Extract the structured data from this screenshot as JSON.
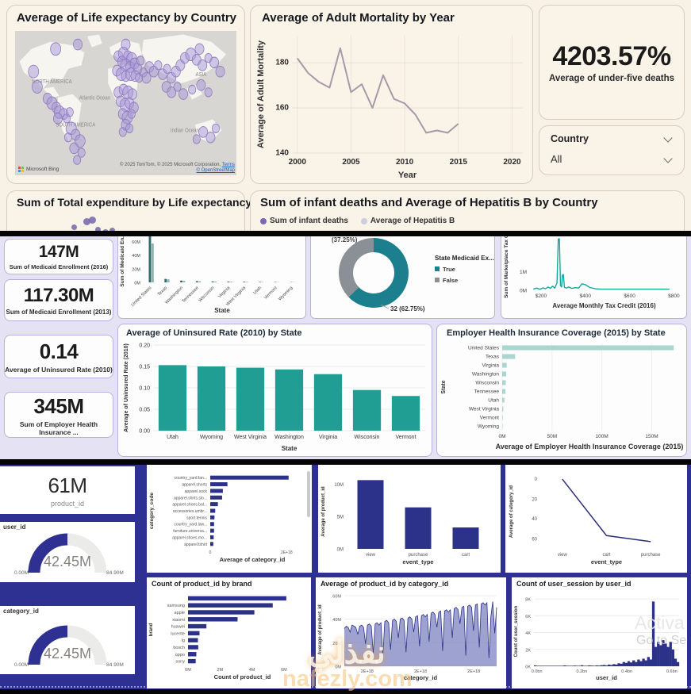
{
  "colors": {
    "cream": "#f8f1e5",
    "lavender": "#e4e2f3",
    "navy": "#2e3192",
    "teal": "#219e94",
    "teal_dark": "#2e6b66",
    "teal_mid": "#8fb3ae",
    "teal_light": "#abd6d0",
    "donut_teal": "#1c7f8e",
    "donut_gray": "#8b9096",
    "purple": "#7b68b5",
    "hep_gray": "#cfccdf",
    "mortality_line": "#a79aa8",
    "tax_line": "#18a79b",
    "bar_navy": "#2c3189",
    "line_navy": "#2a3078",
    "area_fill": "rgba(125,131,192,0.75)",
    "map_ocean": "#d7d6d2",
    "map_land": "#f7f5f0",
    "bubble_fill": "rgba(168,150,215,0.5)",
    "bubble_stroke": "#8d7bc0"
  },
  "top": {
    "map": {
      "bing": "Microsoft Bing",
      "attribution1": "© 2025 TomTom, © 2025 Microsoft Corporation,",
      "terms": "Terms",
      "attribution2": "© OpenStreetMap"
    },
    "kpi": {
      "value": "4203.57%",
      "label": "Average of under-five deaths"
    },
    "filter": {
      "label": "Country",
      "value": "All"
    },
    "infant": {
      "title": "Sum of infant deaths and Average of Hepatitis B by Country",
      "legend1": "Sum of infant deaths",
      "legend2": "Average of Hepatitis B"
    }
  },
  "middle": {
    "kpis": [
      {
        "value": "147M",
        "label": "Sum of Medicaid Enrollment (2016)"
      },
      {
        "value": "117.30M",
        "label": "Sum of Medicaid Enrollment (2013)"
      },
      {
        "value": "0.14",
        "label": "Average of Uninsured Rate (2010)"
      },
      {
        "value": "345M",
        "label": "Sum of Employer Health Insurance ..."
      }
    ]
  },
  "bottom": {
    "kpi": {
      "value": "61M",
      "label": "product_id"
    }
  },
  "watermark": {
    "arabic": "نفذلي",
    "site": "nafezly.com"
  },
  "activate": {
    "line1": "Activa",
    "line2": "Go to Se"
  },
  "chart_data": {
    "life_expectancy_map": {
      "type": "scatter",
      "title": "Average of Life expectancy by Country",
      "labels": [
        "NORTH AMERICA",
        "ASIA",
        "SOUTH AMERICA",
        "Atlantic Ocean",
        "Indian Ocean"
      ],
      "bubbles": [
        [
          55,
          20,
          7
        ],
        [
          25,
          45,
          7
        ],
        [
          30,
          62,
          7
        ],
        [
          85,
          15,
          6
        ],
        [
          150,
          15,
          6
        ],
        [
          250,
          20,
          6
        ],
        [
          44,
          75,
          6
        ],
        [
          50,
          80,
          7
        ],
        [
          56,
          85,
          6
        ],
        [
          60,
          90,
          7
        ],
        [
          66,
          92,
          6
        ],
        [
          58,
          97,
          6
        ],
        [
          70,
          97,
          5
        ],
        [
          74,
          90,
          5
        ],
        [
          76,
          108,
          7
        ],
        [
          82,
          115,
          6
        ],
        [
          88,
          122,
          7
        ],
        [
          80,
          130,
          6
        ],
        [
          90,
          135,
          5
        ],
        [
          72,
          118,
          5
        ],
        [
          84,
          143,
          5
        ],
        [
          140,
          28,
          6
        ],
        [
          147,
          25,
          7
        ],
        [
          153,
          28,
          6
        ],
        [
          158,
          31,
          7
        ],
        [
          145,
          34,
          6
        ],
        [
          150,
          38,
          7
        ],
        [
          156,
          40,
          6
        ],
        [
          162,
          36,
          6
        ],
        [
          166,
          42,
          6
        ],
        [
          170,
          33,
          5
        ],
        [
          138,
          44,
          6
        ],
        [
          144,
          48,
          7
        ],
        [
          150,
          50,
          6
        ],
        [
          157,
          48,
          7
        ],
        [
          163,
          50,
          6
        ],
        [
          168,
          52,
          5
        ],
        [
          174,
          46,
          5
        ],
        [
          178,
          52,
          6
        ],
        [
          140,
          68,
          6
        ],
        [
          147,
          65,
          6
        ],
        [
          153,
          68,
          7
        ],
        [
          159,
          70,
          6
        ],
        [
          143,
          78,
          6
        ],
        [
          149,
          82,
          7
        ],
        [
          155,
          80,
          6
        ],
        [
          161,
          85,
          6
        ],
        [
          146,
          92,
          6
        ],
        [
          152,
          96,
          7
        ],
        [
          158,
          92,
          5
        ],
        [
          150,
          104,
          6
        ],
        [
          155,
          108,
          5
        ],
        [
          146,
          112,
          5
        ],
        [
          182,
          40,
          6
        ],
        [
          188,
          45,
          6
        ],
        [
          194,
          38,
          5
        ],
        [
          200,
          48,
          6
        ],
        [
          206,
          42,
          5
        ],
        [
          212,
          52,
          6
        ],
        [
          218,
          45,
          6
        ],
        [
          224,
          38,
          6
        ],
        [
          230,
          30,
          6
        ],
        [
          238,
          26,
          7
        ],
        [
          246,
          32,
          6
        ],
        [
          254,
          38,
          6
        ],
        [
          262,
          30,
          5
        ],
        [
          270,
          35,
          6
        ],
        [
          278,
          45,
          6
        ],
        [
          205,
          62,
          6
        ],
        [
          212,
          68,
          6
        ],
        [
          220,
          62,
          5
        ],
        [
          228,
          70,
          6
        ],
        [
          240,
          65,
          5
        ],
        [
          252,
          60,
          6
        ],
        [
          262,
          68,
          5
        ],
        [
          255,
          112,
          6
        ],
        [
          265,
          118,
          6
        ],
        [
          272,
          108,
          5
        ],
        [
          246,
          120,
          5
        ]
      ]
    },
    "adult_mortality": {
      "type": "line",
      "title": "Average of Adult Mortality by Year",
      "xlabel": "Year",
      "ylabel": "Average of Adult Mortality",
      "x": [
        2000,
        2001,
        2002,
        2003,
        2004,
        2005,
        2006,
        2007,
        2008,
        2009,
        2010,
        2011,
        2012,
        2013,
        2014,
        2015
      ],
      "values": [
        182,
        175.5,
        171.5,
        169,
        186.5,
        167,
        170.5,
        160,
        174.5,
        164,
        162,
        157,
        149,
        150,
        149,
        153
      ],
      "yticks": [
        "180",
        "160",
        "140"
      ],
      "xticks": [
        "2000",
        "2005",
        "2010",
        "2015",
        "2020"
      ],
      "ylim": [
        140,
        192
      ],
      "xlim": [
        1999.5,
        2021
      ]
    },
    "expenditure_scatter": {
      "type": "scatter",
      "title": "Sum of Total expenditure by Life expectancy",
      "points": [
        [
          0.27,
          0.45,
          3.5
        ],
        [
          0.32,
          0.2,
          4.5
        ],
        [
          0.345,
          0.12,
          4.5
        ],
        [
          0.37,
          0.55,
          3.5
        ],
        [
          0.4,
          0.68,
          4
        ],
        [
          0.43,
          0.6,
          3.5
        ],
        [
          0.305,
          0.82,
          3
        ],
        [
          0.355,
          0.88,
          3
        ],
        [
          0.41,
          0.92,
          3
        ]
      ]
    },
    "medicaid_by_state": {
      "type": "bar",
      "xlabel": "State",
      "ylabel": "Sum of Medicaid En...",
      "categories": [
        "United States",
        "Texas",
        "Washington",
        "Tennessee",
        "Wisconsin",
        "Virginia",
        "West Virginia",
        "Utah",
        "Vermont",
        "Wyoming"
      ],
      "series": [
        {
          "name": "Sum of Medicaid Enrollment (2016)",
          "values": [
            78,
            5,
            2.6,
            1.8,
            1.4,
            1.1,
            0.9,
            0.7,
            0.5,
            0.4
          ]
        },
        {
          "name": "Sum of Medicaid Enrollment (2013)",
          "values": [
            57,
            4.4,
            2.2,
            1.5,
            1.1,
            0.9,
            0.7,
            0.5,
            0.4,
            0.3
          ]
        }
      ],
      "yticks": [
        "60M",
        "40M",
        "20M",
        "0M"
      ],
      "ylim": [
        0,
        65
      ]
    },
    "state_medicaid_donut": {
      "type": "pie",
      "legend_title": "State Medicaid Ex...",
      "slices": [
        {
          "label": "True",
          "pct": 62.75,
          "annotation": "32 (62.75%)",
          "color": "#1c7f8e"
        },
        {
          "label": "False",
          "pct": 37.25,
          "annotation": "(37.25%)",
          "color": "#8b9096"
        }
      ]
    },
    "marketplace_tax": {
      "type": "line",
      "xlabel": "Average Monthly Tax Credit (2016)",
      "ylabel": "Sum of Marketplace Tax C...",
      "points": [
        [
          165,
          0.06
        ],
        [
          180,
          0.12
        ],
        [
          195,
          0.05
        ],
        [
          210,
          0.13
        ],
        [
          220,
          0.08
        ],
        [
          232,
          0.18
        ],
        [
          242,
          0.1
        ],
        [
          252,
          0.22
        ],
        [
          262,
          0.12
        ],
        [
          272,
          0.4
        ],
        [
          278,
          2.75
        ],
        [
          283,
          2.75
        ],
        [
          288,
          0.25
        ],
        [
          293,
          0.18
        ],
        [
          297,
          0.8
        ],
        [
          301,
          0.85
        ],
        [
          306,
          0.15
        ],
        [
          315,
          0.12
        ],
        [
          325,
          0.18
        ],
        [
          340,
          0.1
        ],
        [
          355,
          0.14
        ],
        [
          370,
          0.12
        ],
        [
          385,
          0.35
        ],
        [
          400,
          0.3
        ],
        [
          420,
          0.15
        ],
        [
          445,
          0.08
        ],
        [
          470,
          0.06
        ],
        [
          520,
          0.06
        ],
        [
          600,
          0.06
        ],
        [
          700,
          0.06
        ],
        [
          780,
          0.06
        ]
      ],
      "yticks": [
        "1M",
        "0M"
      ],
      "xticks": [
        "$200",
        "$400",
        "$600",
        "$800"
      ],
      "ylim": [
        0,
        2.8
      ],
      "xlim": [
        150,
        820
      ]
    },
    "uninsured_rate": {
      "type": "bar",
      "title": "Average of Uninsured Rate (2010) by State",
      "xlabel": "State",
      "ylabel": "Average of Uninsured Rate (2010)",
      "categories": [
        "Utah",
        "Wyoming",
        "West Virginia",
        "Washington",
        "Virginia",
        "Wisconsin",
        "Vermont"
      ],
      "values": [
        0.153,
        0.15,
        0.147,
        0.143,
        0.132,
        0.095,
        0.081
      ],
      "yticks": [
        "0.20",
        "0.15",
        "0.10",
        "0.05",
        "0.00"
      ],
      "ylim": [
        0,
        0.2
      ]
    },
    "employer_coverage": {
      "type": "bar",
      "title": "Employer Health Insurance Coverage (2015) by State",
      "xlabel": "Average of Employer Health Insurance Coverage (2015)",
      "ylabel": "State",
      "categories": [
        "United States",
        "Texas",
        "Virginia",
        "Washington",
        "Wisconsin",
        "Tennessee",
        "Utah",
        "West Virginia",
        "Vermont",
        "Wyoming"
      ],
      "values": [
        172,
        13,
        4.5,
        4,
        3.6,
        3.3,
        2.2,
        1.1,
        0.5,
        0.35
      ],
      "xticks": [
        "0M",
        "50M",
        "100M",
        "150M"
      ],
      "xlim": [
        0,
        175
      ]
    },
    "avg_category_by_code": {
      "type": "bar",
      "xlabel": "Average of category_id",
      "ylabel": "category_code",
      "categories": [
        "country_yard.fan...",
        "apparel.shorts",
        "apparel.sock",
        "apparel.shirts.slo...",
        "apparel.shoes.bal...",
        "accessories.umbr...",
        "sport.tennis",
        "country_yard.law...",
        "furniture.universa...",
        "apparel.shoes.mo...",
        "apparel.tshirt"
      ],
      "values": [
        2.05,
        0.45,
        0.33,
        0.31,
        0.2,
        0.13,
        0.11,
        0.1,
        0.1,
        0.09,
        0.08
      ],
      "xticks": [
        "0",
        "2E+18"
      ],
      "xlim": [
        0,
        2.2
      ]
    },
    "avg_product_by_event": {
      "type": "bar",
      "xlabel": "event_type",
      "ylabel": "Average of product_id",
      "categories": [
        "view",
        "purchase",
        "cart"
      ],
      "values": [
        10.6,
        6.4,
        3.3
      ],
      "yticks": [
        "10M",
        "5M",
        "0M"
      ],
      "ylim": [
        0,
        11.5
      ]
    },
    "avg_category_by_event": {
      "type": "line",
      "xlabel": "event_type",
      "ylabel": "Average of category_id",
      "categories": [
        "view",
        "cart",
        "purchase"
      ],
      "values": [
        58,
        11,
        6
      ],
      "yticks": [
        "0",
        "20",
        "40",
        "60"
      ],
      "ylim": [
        0,
        62
      ]
    },
    "product_by_brand": {
      "type": "bar",
      "title": "Count of product_id by brand",
      "xlabel": "Count of product_id",
      "ylabel": "brand",
      "categories": [
        "",
        "samsung",
        "apple",
        "xiaomi",
        "huawei",
        "lucente",
        "lg",
        "bosch",
        "oppo",
        "sony"
      ],
      "values": [
        6.15,
        5.3,
        4.15,
        3.1,
        1.15,
        0.72,
        0.62,
        0.64,
        0.52,
        0.48
      ],
      "xticks": [
        "0M",
        "2M",
        "4M",
        "6M"
      ],
      "xlim": [
        0,
        6.8
      ]
    },
    "avg_product_by_category": {
      "type": "area",
      "title": "Average of product_id by category_id",
      "xlabel": "category_id",
      "ylabel": "Average of product_id",
      "values": [
        32,
        34,
        33,
        29,
        35,
        34,
        33,
        27,
        34,
        35,
        33,
        19,
        35,
        36,
        34,
        11,
        36,
        37,
        35,
        37,
        9,
        38,
        39,
        37,
        14,
        39,
        40,
        38,
        24,
        40,
        41,
        39,
        12,
        41,
        42,
        40,
        29,
        42,
        43,
        17,
        43,
        44,
        42,
        44,
        21,
        45,
        46,
        44,
        33,
        46,
        47,
        13,
        47,
        48,
        46,
        48,
        24,
        49,
        50,
        48,
        36,
        50,
        51,
        9,
        51,
        52,
        50,
        30,
        52,
        53,
        16,
        53,
        54,
        52,
        54,
        7,
        42,
        55,
        28,
        50
      ],
      "yticks": [
        "60M",
        "40M",
        "20M",
        "0M"
      ],
      "xticks": [
        "2E+18",
        "2E+18",
        "2E+18"
      ],
      "ylim": [
        0,
        62
      ]
    },
    "user_session_hist": {
      "type": "bar",
      "title": "Count of user_session by user_id",
      "xlabel": "user_id",
      "ylabel": "Count of user_session",
      "values": [
        0.1,
        0.06,
        0.06,
        0.06,
        0.06,
        0.06,
        0.06,
        0.06,
        0.06,
        0.06,
        0.06,
        0.06,
        0.1,
        0.06,
        0.06,
        0.06,
        0.08,
        0.06,
        0.06,
        0.12,
        0.06,
        0.06,
        0.1,
        0.08,
        0.06,
        0.1,
        0.08,
        0.12,
        0.15,
        0.1,
        0.2,
        0.15,
        0.25,
        0.2,
        0.35,
        0.3,
        0.5,
        0.4,
        0.6,
        0.45,
        0.7,
        0.5,
        0.8,
        0.6,
        0.9,
        0.7,
        1.1,
        0.8,
        7.7,
        2.3,
        2.9,
        2.5,
        3.1,
        2.7,
        2.3,
        2.9,
        2.0,
        0.9,
        0.5
      ],
      "yticks": [
        "8K",
        "6K",
        "4K",
        "2K",
        "0K"
      ],
      "xticks": [
        "0.0bn",
        "0.2bn",
        "0.4bn",
        "0.6bn"
      ],
      "ylim": [
        0,
        8.3
      ]
    },
    "gauge_user_id": {
      "type": "gauge",
      "title": "user_id",
      "value": "42.45M",
      "min": "0.00M",
      "max": "84.90M",
      "fraction": 0.5
    },
    "gauge_category_id": {
      "type": "gauge",
      "title": "category_id",
      "value": "42.45M",
      "min": "0.00M",
      "max": "84.90M",
      "fraction": 0.5
    }
  }
}
